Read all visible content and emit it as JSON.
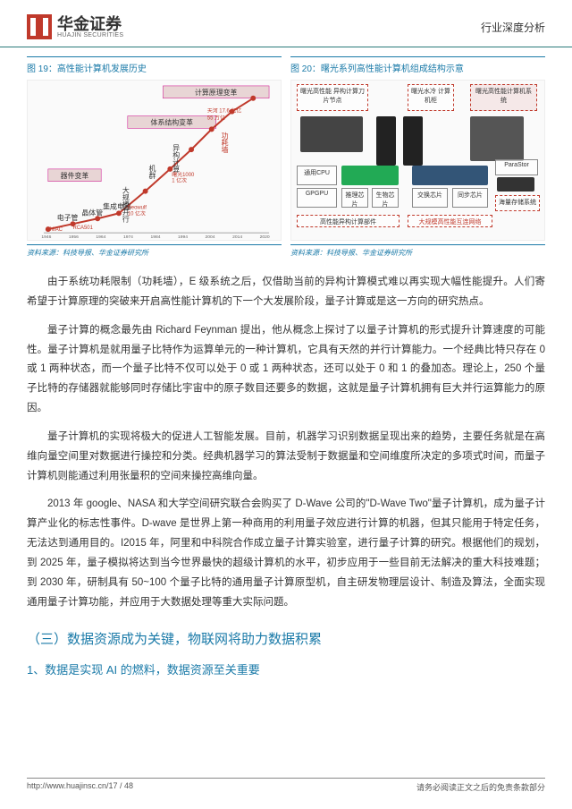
{
  "header": {
    "logo_cn": "华金证券",
    "logo_en": "HUAJIN SECURITIES",
    "right": "行业深度分析"
  },
  "fig19": {
    "title": "图 19：高性能计算机发展历史",
    "source": "资料来源：科技导报、华金证券研究所",
    "top_label": "计算原理变革",
    "mid_label": "体系结构变革",
    "left_label": "器件变革",
    "y_title": "功耗墙",
    "node_labels": [
      "电子管",
      "晶体管",
      "集成电路",
      "大规模并行",
      "机群",
      "异构计算"
    ],
    "annot1": "天河 17.6 亿亿",
    "annot2": "55 万亿",
    "annot3": "曙光1000\n 1 亿次",
    "annot4": "Beowulf\n 10 亿次",
    "annot5": "RCA501\n 400 次",
    "annot6": "ENIAC\n 5000 次",
    "x_ticks": [
      "1946",
      "1956",
      "1964",
      "1974",
      "1984",
      "1994",
      "2004",
      "2014",
      "2020"
    ],
    "curve_points": [
      [
        20,
        168
      ],
      [
        48,
        162
      ],
      [
        76,
        156
      ],
      [
        100,
        150
      ],
      [
        130,
        125
      ],
      [
        158,
        100
      ],
      [
        182,
        78
      ],
      [
        205,
        55
      ],
      [
        228,
        35
      ],
      [
        252,
        20
      ]
    ],
    "curve_color": "#c0392b",
    "grid_color": "#d0d0d0"
  },
  "fig20": {
    "title": "图 20：曙光系列高性能计算机组成结构示意",
    "source": "资料来源：科技导报、华金证券研究所",
    "boxes": {
      "tl": "曙光高性能\n异构计算刀片节点",
      "tr": "曙光水冷\n计算机柜",
      "trr": "曙光高性能计算机系统",
      "cpu": "通用CPU",
      "gpu": "GPGPU",
      "mic": "推理芯片",
      "bio": "生物芯片",
      "switch": "交换芯片",
      "clock": "同步芯片",
      "para": "ParaStor",
      "storage": "海量存储系统",
      "bottom_l": "高性能异构计算部件",
      "bottom_r": "大规模高性能互连网络"
    }
  },
  "paragraphs": {
    "p1": "由于系统功耗限制（功耗墙），E 级系统之后，仅借助当前的异构计算模式难以再实现大幅性能提升。人们寄希望于计算原理的突破来开启高性能计算机的下一个大发展阶段，量子计算或是这一方向的研究热点。",
    "p2": "量子计算的概念最先由 Richard Feynman 提出，他从概念上探讨了以量子计算机的形式提升计算速度的可能性。量子计算机是就用量子比特作为运算单元的一种计算机，它具有天然的并行计算能力。一个经典比特只存在 0 或 1 两种状态，而一个量子比特不仅可以处于 0 或 1 两种状态，还可以处于 0 和 1 的叠加态。理论上，250 个量子比特的存储器就能够同时存储比宇宙中的原子数目还要多的数据，这就是量子计算机拥有巨大并行运算能力的原因。",
    "p3": "量子计算机的实现将极大的促进人工智能发展。目前，机器学习识别数据呈现出来的趋势，主要任务就是在高维向量空间里对数据进行操控和分类。经典机器学习的算法受制于数据量和空间维度所决定的多项式时间，而量子计算机则能通过利用张量积的空间来操控高维向量。",
    "p4": "2013 年 google、NASA 和大学空间研究联合会购买了 D-Wave 公司的\"D-Wave Two\"量子计算机，成为量子计算产业化的标志性事件。D-wave 是世界上第一种商用的利用量子效应进行计算的机器，但其只能用于特定任务，无法达到通用目的。I2015 年，阿里和中科院合作成立量子计算实验室，进行量子计算的研究。根据他们的规划，到 2025 年，量子模拟将达到当今世界最快的超级计算机的水平，初步应用于一些目前无法解决的重大科技难题；到 2030 年，研制具有 50~100 个量子比特的通用量子计算原型机，自主研发物理层设计、制造及算法，全面实现通用量子计算功能，并应用于大数据处理等重大实际问题。"
  },
  "headings": {
    "h2": "（三）数据资源成为关键，物联网将助力数据积累",
    "h3": "1、数据是实现 AI 的燃料，数据资源至关重要"
  },
  "footer": {
    "left": "http://www.huajinsc.cn/17 / 48",
    "right": "请务必阅读正文之后的免责条款部分"
  }
}
